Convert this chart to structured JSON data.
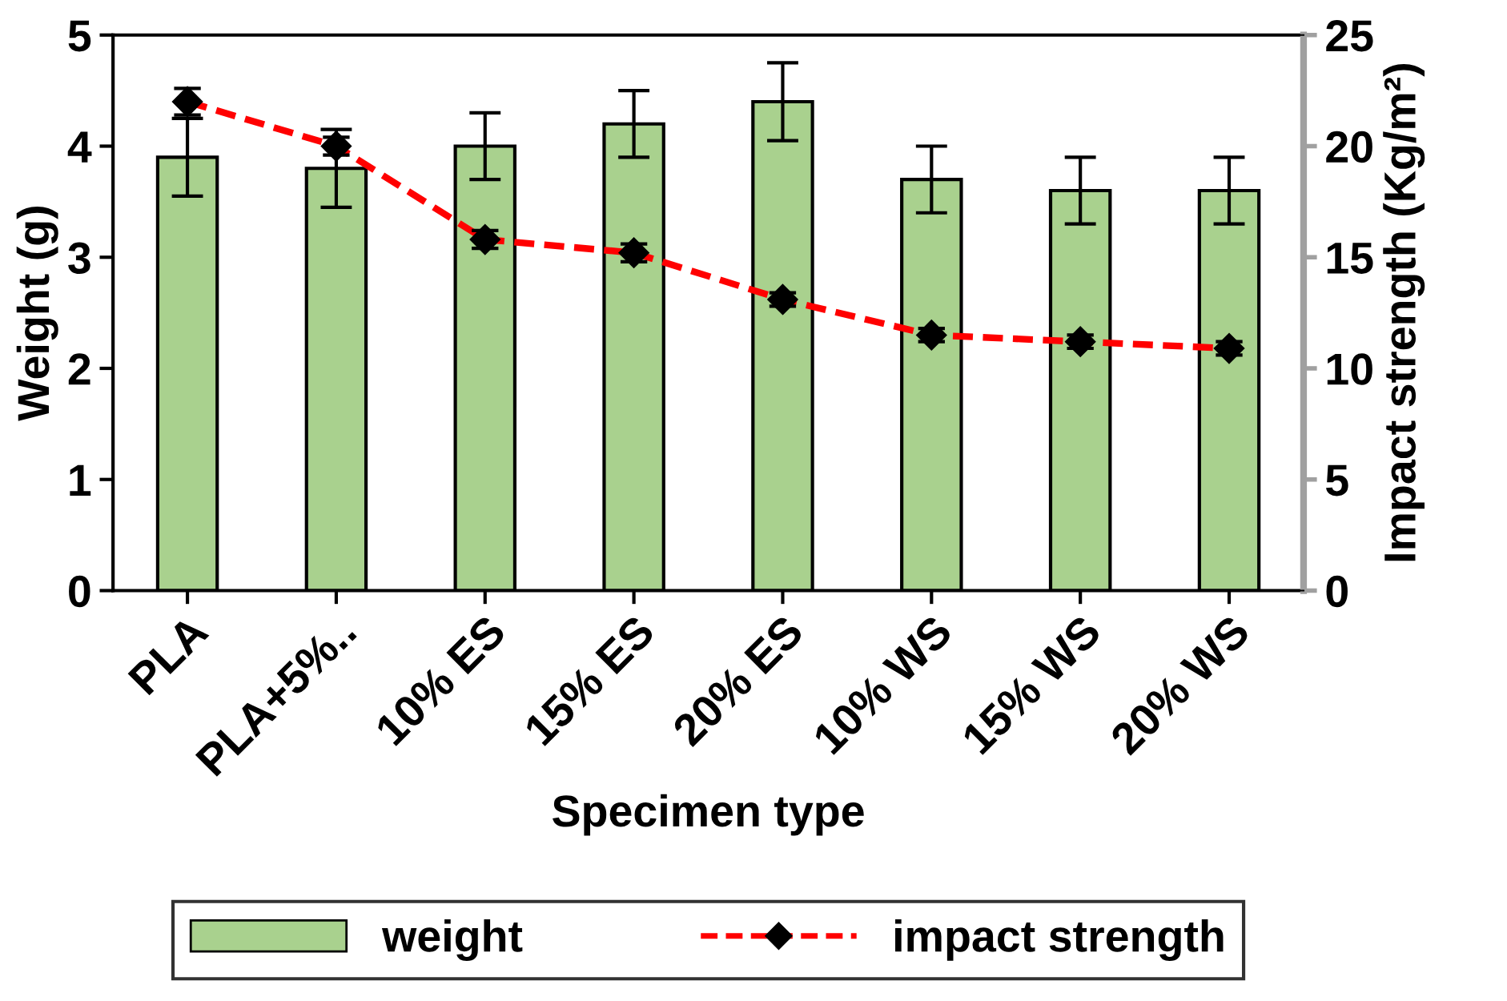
{
  "chart_data": {
    "type": "bar",
    "categories": [
      "PLA",
      "PLA+5%..",
      "10% ES",
      "15% ES",
      "20% ES",
      "10% WS",
      "15% WS",
      "20% WS"
    ],
    "xlabel": "Specimen type",
    "ylabel": "Weight (g)",
    "y2label": "Impact strength (Kg/m²)",
    "ylim": [
      0,
      5
    ],
    "yticks": [
      0,
      1,
      2,
      3,
      4,
      5
    ],
    "y2lim": [
      0,
      25
    ],
    "y2ticks": [
      0,
      5,
      10,
      15,
      20,
      25
    ],
    "grid": false,
    "legend": "bottom",
    "series": [
      {
        "name": "weight",
        "color": "#a9d18e",
        "values": [
          3.9,
          3.8,
          4.0,
          4.2,
          4.4,
          3.7,
          3.6,
          3.6
        ],
        "errors": [
          0.35,
          0.35,
          0.3,
          0.3,
          0.35,
          0.3,
          0.3,
          0.3
        ]
      },
      {
        "name": "impact strength",
        "type": "line",
        "axis": "y2",
        "color": "#ff0000",
        "marker": "diamond",
        "line_style": "dashed",
        "values": [
          22,
          20,
          15.8,
          15.2,
          13.1,
          11.5,
          11.2,
          10.9
        ],
        "errors": [
          0.6,
          0.4,
          0.4,
          0.4,
          0.3,
          0.3,
          0.3,
          0.3
        ]
      }
    ]
  }
}
